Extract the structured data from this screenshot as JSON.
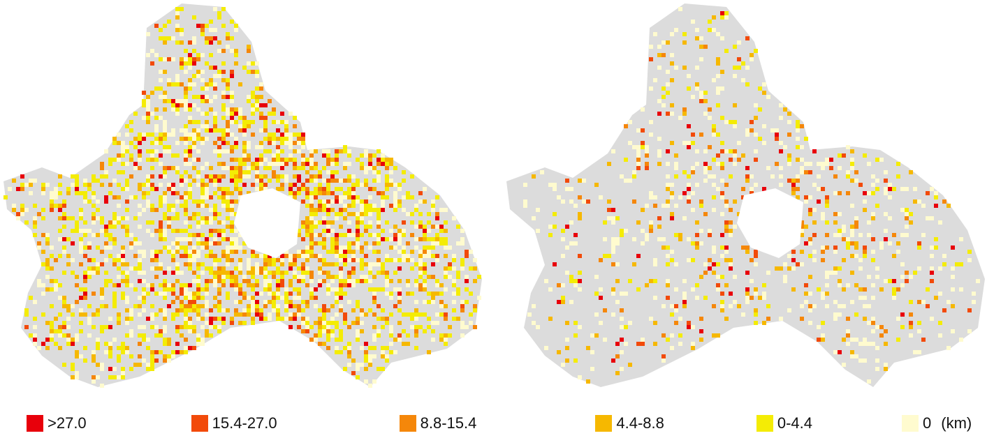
{
  "legend": {
    "items": [
      {
        "label": ">27.0",
        "color": "#e8000b"
      },
      {
        "label": "15.4-27.0",
        "color": "#f24a0a"
      },
      {
        "label": "8.8-15.4",
        "color": "#f5870a"
      },
      {
        "label": "4.4-8.8",
        "color": "#f6b800"
      },
      {
        "label": "0-4.4",
        "color": "#f4ec05"
      },
      {
        "label": "0",
        "color": "#fffbcf"
      }
    ],
    "unit": "(km)"
  }
}
